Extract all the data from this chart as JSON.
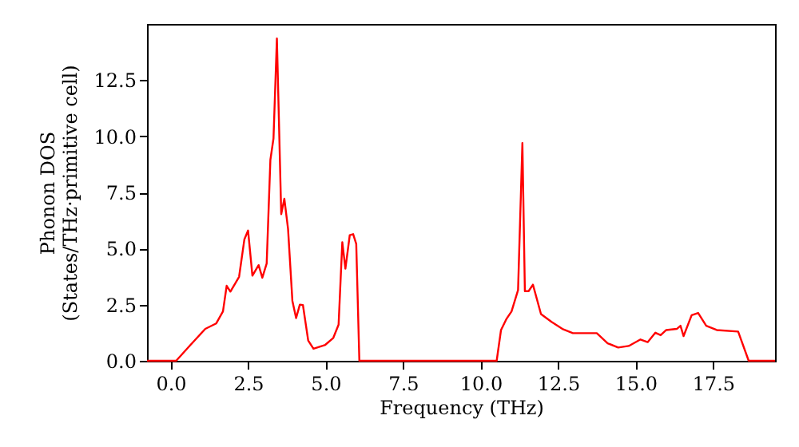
{
  "chart_data": {
    "type": "line",
    "xlabel": "Frequency (THz)",
    "ylabel": "Phonon DOS\n(States/THz·primitive cell)",
    "x": [
      -0.76,
      0.18,
      0.61,
      1.12,
      1.47,
      1.69,
      1.81,
      1.93,
      2.21,
      2.38,
      2.5,
      2.64,
      2.84,
      2.96,
      3.1,
      3.22,
      3.32,
      3.43,
      3.57,
      3.67,
      3.79,
      3.93,
      4.05,
      4.17,
      4.27,
      4.44,
      4.61,
      4.99,
      5.25,
      5.42,
      5.54,
      5.64,
      5.78,
      5.89,
      5.99,
      6.09,
      10.52,
      10.66,
      10.83,
      11.0,
      11.21,
      11.35,
      11.43,
      11.55,
      11.69,
      11.95,
      12.29,
      12.64,
      12.98,
      13.75,
      14.1,
      14.44,
      14.78,
      15.16,
      15.39,
      15.64,
      15.81,
      15.99,
      16.33,
      16.45,
      16.55,
      16.81,
      17.02,
      17.28,
      17.62,
      18.31,
      18.65,
      19.5
    ],
    "series": [
      {
        "color": "#ff0000",
        "values": [
          0,
          0,
          0.66,
          1.42,
          1.66,
          2.2,
          3.34,
          3.08,
          3.74,
          5.4,
          5.8,
          3.79,
          4.26,
          3.7,
          4.33,
          8.95,
          9.9,
          14.35,
          6.53,
          7.22,
          5.87,
          2.67,
          1.9,
          2.5,
          2.48,
          0.9,
          0.54,
          0.71,
          1.02,
          1.61,
          5.28,
          4.1,
          5.59,
          5.64,
          5.2,
          0,
          0,
          1.37,
          1.85,
          2.2,
          3.15,
          9.7,
          3.1,
          3.1,
          3.39,
          2.08,
          1.73,
          1.42,
          1.23,
          1.23,
          0.78,
          0.59,
          0.66,
          0.95,
          0.83,
          1.25,
          1.14,
          1.37,
          1.42,
          1.56,
          1.1,
          2.03,
          2.13,
          1.56,
          1.37,
          1.3,
          0,
          0
        ]
      }
    ],
    "xlim": [
      -0.76,
      19.5
    ],
    "ylim": [
      0,
      15
    ],
    "xticks": [
      {
        "value": 0,
        "label": "0.0"
      },
      {
        "value": 2.5,
        "label": "2.5"
      },
      {
        "value": 5,
        "label": "5.0"
      },
      {
        "value": 7.5,
        "label": "7.5"
      },
      {
        "value": 10,
        "label": "10.0"
      },
      {
        "value": 12.5,
        "label": "12.5"
      },
      {
        "value": 15,
        "label": "15.0"
      },
      {
        "value": 17.5,
        "label": "17.5"
      }
    ],
    "yticks": [
      {
        "value": 0,
        "label": "0.0"
      },
      {
        "value": 2.5,
        "label": "2.5"
      },
      {
        "value": 5,
        "label": "5.0"
      },
      {
        "value": 7.5,
        "label": "7.5"
      },
      {
        "value": 10,
        "label": "10.0"
      },
      {
        "value": 12.5,
        "label": "12.5"
      }
    ],
    "marker": "none",
    "line_style": "solid"
  }
}
